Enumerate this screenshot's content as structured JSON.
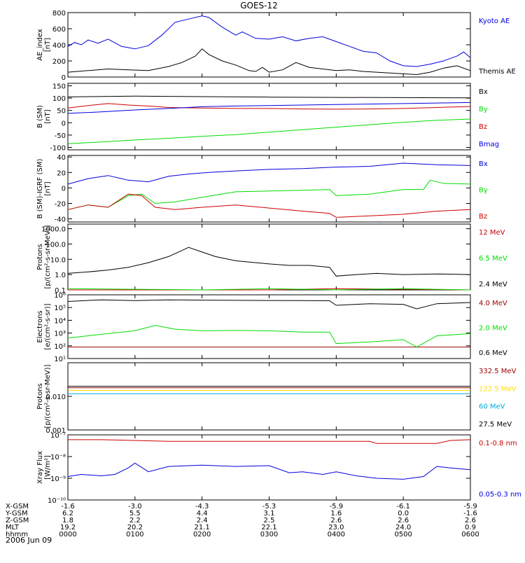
{
  "title": "GOES-12",
  "date": "2006 Jun 09",
  "colors": {
    "black": "#000000",
    "blue": "#0000dd",
    "green": "#00dd00",
    "red": "#cc0000",
    "darkred": "#990000",
    "yellow": "#ffdd00",
    "cyan": "#00aadd"
  },
  "chart_data": [
    {
      "type": "line",
      "name": "ae",
      "ylabel_lines": [
        "AE_index",
        "[nT]"
      ],
      "ylim": [
        0,
        800
      ],
      "yticks": [
        0,
        200,
        400,
        600,
        800
      ],
      "ytick_labels": [
        "0",
        "200",
        "400",
        "600",
        "800"
      ],
      "log": false,
      "series": [
        {
          "name": "Kyoto AE",
          "color": "#0000dd",
          "x": [
            0,
            0.1,
            0.2,
            0.3,
            0.45,
            0.6,
            0.8,
            1.0,
            1.2,
            1.4,
            1.6,
            1.8,
            2.0,
            2.1,
            2.3,
            2.5,
            2.6,
            2.8,
            3.0,
            3.2,
            3.4,
            3.6,
            3.8,
            4.0,
            4.2,
            4.4,
            4.6,
            4.8,
            5.0,
            5.2,
            5.4,
            5.6,
            5.8,
            5.9,
            6.0
          ],
          "y": [
            380,
            430,
            400,
            460,
            420,
            470,
            380,
            350,
            390,
            520,
            680,
            720,
            760,
            740,
            620,
            520,
            560,
            480,
            470,
            500,
            450,
            480,
            500,
            440,
            380,
            320,
            300,
            200,
            140,
            130,
            160,
            200,
            260,
            310,
            240
          ]
        },
        {
          "name": "Themis AE",
          "color": "#000000",
          "x": [
            0,
            0.3,
            0.6,
            0.9,
            1.2,
            1.5,
            1.7,
            1.9,
            2.0,
            2.1,
            2.3,
            2.5,
            2.7,
            2.8,
            2.9,
            3.0,
            3.2,
            3.4,
            3.6,
            3.8,
            4.0,
            4.2,
            4.4,
            4.6,
            4.8,
            5.0,
            5.2,
            5.4,
            5.6,
            5.8,
            6.0
          ],
          "y": [
            60,
            80,
            100,
            90,
            80,
            130,
            180,
            260,
            350,
            280,
            200,
            150,
            80,
            70,
            120,
            60,
            90,
            180,
            120,
            100,
            80,
            90,
            70,
            60,
            50,
            40,
            30,
            60,
            110,
            140,
            80
          ]
        }
      ]
    },
    {
      "type": "line",
      "name": "bsm",
      "ylabel_lines": [
        "B (SM)",
        "[nT]"
      ],
      "ylim": [
        -110,
        160
      ],
      "yticks": [
        -100,
        -50,
        0,
        50,
        100,
        150
      ],
      "ytick_labels": [
        "-100",
        "-50",
        "0",
        "50",
        "100",
        "150"
      ],
      "log": false,
      "series": [
        {
          "name": "Bx",
          "color": "#000000",
          "x": [
            0,
            1,
            2,
            3,
            4,
            5,
            6
          ],
          "y": [
            105,
            108,
            106,
            104,
            103,
            102,
            101
          ]
        },
        {
          "name": "By",
          "color": "#00dd00",
          "x": [
            0,
            0.5,
            1,
            1.5,
            2,
            2.5,
            3,
            3.5,
            4,
            4.5,
            5,
            5.5,
            6
          ],
          "y": [
            -85,
            -78,
            -70,
            -63,
            -55,
            -48,
            -38,
            -28,
            -18,
            -8,
            2,
            10,
            15
          ]
        },
        {
          "name": "Bz",
          "color": "#cc0000",
          "x": [
            0,
            0.3,
            0.6,
            0.9,
            1.2,
            1.5,
            2,
            2.5,
            3,
            3.5,
            4,
            4.5,
            5,
            5.5,
            6
          ],
          "y": [
            60,
            70,
            78,
            72,
            68,
            62,
            60,
            58,
            58,
            56,
            55,
            56,
            58,
            62,
            66
          ]
        },
        {
          "name": "Bmag",
          "color": "#0000dd",
          "x": [
            0,
            0.5,
            1,
            1.5,
            2,
            2.5,
            3,
            3.5,
            4,
            4.5,
            5,
            5.5,
            6
          ],
          "y": [
            38,
            44,
            52,
            58,
            65,
            68,
            70,
            72,
            74,
            76,
            78,
            80,
            82
          ]
        }
      ]
    },
    {
      "type": "line",
      "name": "bdiff",
      "ylabel_lines": [
        "B (SM)-IGRF (SM)",
        "[nT]"
      ],
      "ylim": [
        -44,
        42
      ],
      "yticks": [
        -40,
        -20,
        0,
        20,
        40
      ],
      "ytick_labels": [
        "-40",
        "-20",
        "0",
        "20",
        "40"
      ],
      "log": false,
      "series": [
        {
          "name": "Bx",
          "color": "#0000dd",
          "x": [
            0,
            0.3,
            0.6,
            0.9,
            1.2,
            1.5,
            1.8,
            2.1,
            2.5,
            3,
            3.5,
            4,
            4.5,
            5,
            5.5,
            6
          ],
          "y": [
            5,
            12,
            16,
            10,
            8,
            15,
            18,
            20,
            22,
            24,
            25,
            27,
            28,
            32,
            30,
            29
          ]
        },
        {
          "name": "By",
          "color": "#00dd00",
          "x": [
            0,
            0.3,
            0.6,
            0.9,
            1.1,
            1.3,
            1.6,
            2,
            2.5,
            3,
            3.5,
            3.9,
            4.0,
            4.5,
            5,
            5.3,
            5.4,
            5.6,
            6
          ],
          "y": [
            -28,
            -22,
            -25,
            -10,
            -8,
            -20,
            -18,
            -12,
            -5,
            -4,
            -3,
            -2,
            -10,
            -8,
            -2,
            -2,
            10,
            6,
            5
          ]
        },
        {
          "name": "Bz",
          "color": "#cc0000",
          "x": [
            0,
            0.3,
            0.6,
            0.9,
            1.1,
            1.3,
            1.6,
            2,
            2.5,
            3,
            3.5,
            3.9,
            4.0,
            4.5,
            5,
            5.5,
            6
          ],
          "y": [
            -28,
            -22,
            -25,
            -8,
            -10,
            -25,
            -28,
            -25,
            -22,
            -26,
            -30,
            -33,
            -38,
            -36,
            -34,
            -30,
            -28
          ]
        }
      ]
    },
    {
      "type": "line",
      "name": "protons_low",
      "ylabel_lines": [
        "Protons",
        "[p/(cm²-s-sr-MeV)]"
      ],
      "ylim": [
        0.1,
        2000
      ],
      "yticks": [
        0.1,
        1,
        10,
        100,
        1000
      ],
      "ytick_labels": [
        "0.1",
        "1.0",
        "10.0",
        "100.0",
        "1000.0"
      ],
      "log": true,
      "series": [
        {
          "name": "12 MeV",
          "color": "#cc0000",
          "x": [
            0,
            1,
            2,
            3,
            4,
            5,
            6
          ],
          "y": [
            0.1,
            0.1,
            0.1,
            0.1,
            0.12,
            0.11,
            0.1
          ]
        },
        {
          "name": "6.5 MeV",
          "color": "#00dd00",
          "x": [
            0,
            1,
            2,
            3,
            4,
            5,
            6
          ],
          "y": [
            0.12,
            0.11,
            0.1,
            0.12,
            0.1,
            0.12,
            0.1
          ]
        },
        {
          "name": "2.4 MeV",
          "color": "#000000",
          "x": [
            0,
            0.3,
            0.6,
            0.9,
            1.2,
            1.5,
            1.8,
            2.0,
            2.2,
            2.5,
            2.8,
            3.0,
            3.3,
            3.6,
            3.9,
            4.0,
            4.3,
            4.6,
            5.0,
            5.5,
            6.0
          ],
          "y": [
            1.2,
            1.5,
            2.0,
            3.0,
            6.0,
            15,
            60,
            30,
            15,
            8,
            6,
            5,
            4,
            4,
            3,
            0.8,
            1.0,
            1.2,
            1.0,
            1.1,
            1.0
          ]
        }
      ]
    },
    {
      "type": "line",
      "name": "electrons",
      "ylabel_lines": [
        "Electrons",
        "[e/(cm²-s-sr)]"
      ],
      "ylim": [
        10,
        1000000
      ],
      "yticks": [
        10,
        100,
        1000,
        10000,
        100000,
        1000000
      ],
      "ytick_labels": [
        "10¹",
        "10²",
        "10³",
        "10⁴",
        "10⁵",
        "10⁶"
      ],
      "log": true,
      "series": [
        {
          "name": "4.0 MeV",
          "color": "#990000",
          "x": [
            0,
            6
          ],
          "y": [
            80,
            80
          ]
        },
        {
          "name": "2.0 MeV",
          "color": "#00dd00",
          "x": [
            0,
            0.5,
            1.0,
            1.3,
            1.6,
            2,
            2.5,
            3,
            3.5,
            3.9,
            4.0,
            4.5,
            5.0,
            5.2,
            5.5,
            6
          ],
          "y": [
            400,
            800,
            1500,
            4000,
            2000,
            1500,
            1600,
            1500,
            1200,
            1200,
            150,
            200,
            300,
            80,
            600,
            900
          ]
        },
        {
          "name": "0.6 MeV",
          "color": "#000000",
          "x": [
            0,
            0.5,
            1,
            1.5,
            2,
            2.5,
            3,
            3.5,
            3.9,
            4.0,
            4.5,
            5.0,
            5.2,
            5.5,
            6
          ],
          "y": [
            300000,
            400000,
            350000,
            400000,
            380000,
            370000,
            360000,
            350000,
            340000,
            150000,
            200000,
            180000,
            80000,
            200000,
            250000
          ]
        }
      ]
    },
    {
      "type": "line",
      "name": "protons_high",
      "ylabel_lines": [
        "Protons",
        "[p/(cm²-s-sr-MeV)]"
      ],
      "ylim": [
        0.001,
        0.1
      ],
      "yticks": [
        0.001,
        0.01
      ],
      "ytick_labels": [
        "0.001",
        "0.010"
      ],
      "log": true,
      "series": [
        {
          "name": "332.5 MeV",
          "color": "#990000",
          "x": [
            0,
            6
          ],
          "y": [
            0.018,
            0.018
          ]
        },
        {
          "name": "122.5 MeV",
          "color": "#ffdd00",
          "x": [
            0,
            6
          ],
          "y": [
            0.015,
            0.015
          ]
        },
        {
          "name": "60 MeV",
          "color": "#00aadd",
          "x": [
            0,
            6
          ],
          "y": [
            0.012,
            0.012
          ]
        },
        {
          "name": "27.5 MeV",
          "color": "#000000",
          "x": [
            0,
            6
          ],
          "y": [
            0.02,
            0.02
          ]
        }
      ]
    },
    {
      "type": "line",
      "name": "xray",
      "ylabel_lines": [
        "Xray Flux",
        "[W/m²]"
      ],
      "ylim": [
        1e-10,
        1e-07
      ],
      "yticks": [
        1e-10,
        1e-09,
        1e-08,
        1e-07
      ],
      "ytick_labels": [
        "10⁻¹⁰",
        "10⁻⁹",
        "10⁻⁸",
        "10⁻⁷"
      ],
      "log": true,
      "series": [
        {
          "name": "0.1-0.8 nm",
          "color": "#cc0000",
          "x": [
            0,
            0.5,
            1.0,
            1.5,
            2,
            2.5,
            3,
            3.5,
            4,
            4.5,
            4.6,
            5,
            5.5,
            5.7,
            6
          ],
          "y": [
            6e-08,
            6e-08,
            5.5e-08,
            5e-08,
            5e-08,
            5e-08,
            5e-08,
            5e-08,
            5e-08,
            5e-08,
            4e-08,
            4e-08,
            4e-08,
            5.5e-08,
            6e-08
          ]
        },
        {
          "name": "0.05-0.3 nm",
          "color": "#0000dd",
          "x": [
            0,
            0.2,
            0.5,
            0.7,
            0.9,
            1.0,
            1.2,
            1.5,
            2,
            2.5,
            3,
            3.3,
            3.5,
            3.8,
            4.0,
            4.3,
            4.6,
            5,
            5.3,
            5.5,
            5.7,
            6
          ],
          "y": [
            1.2e-09,
            1.5e-09,
            1.3e-09,
            1.5e-09,
            3e-09,
            5e-09,
            2e-09,
            3.5e-09,
            4e-09,
            3.5e-09,
            3.8e-09,
            1.8e-09,
            2e-09,
            1.5e-09,
            2e-09,
            1.3e-09,
            1e-09,
            9e-10,
            1.2e-09,
            3.5e-09,
            3e-09,
            2.5e-09
          ]
        }
      ]
    }
  ],
  "xaxis": {
    "ticks": [
      0,
      1,
      2,
      3,
      4,
      5,
      6
    ],
    "rows": [
      {
        "label": "X-GSM",
        "values": [
          "-1.6",
          "-3.0",
          "-4.3",
          "-5.3",
          "-5.9",
          "-6.1",
          "-5.9"
        ]
      },
      {
        "label": "Y-GSM",
        "values": [
          "6.2",
          "5.5",
          "4.4",
          "3.1",
          "1.6",
          "0.0",
          "-1.6"
        ]
      },
      {
        "label": "Z-GSM",
        "values": [
          "1.8",
          "2.2",
          "2.4",
          "2.5",
          "2.6",
          "2.6",
          "2.6"
        ]
      },
      {
        "label": "MLT",
        "values": [
          "19.2",
          "20.2",
          "21.1",
          "22.1",
          "23.0",
          "24.0",
          "0.9"
        ]
      },
      {
        "label": "hhmm",
        "values": [
          "0000",
          "0100",
          "0200",
          "0300",
          "0400",
          "0500",
          "0600"
        ]
      }
    ]
  }
}
